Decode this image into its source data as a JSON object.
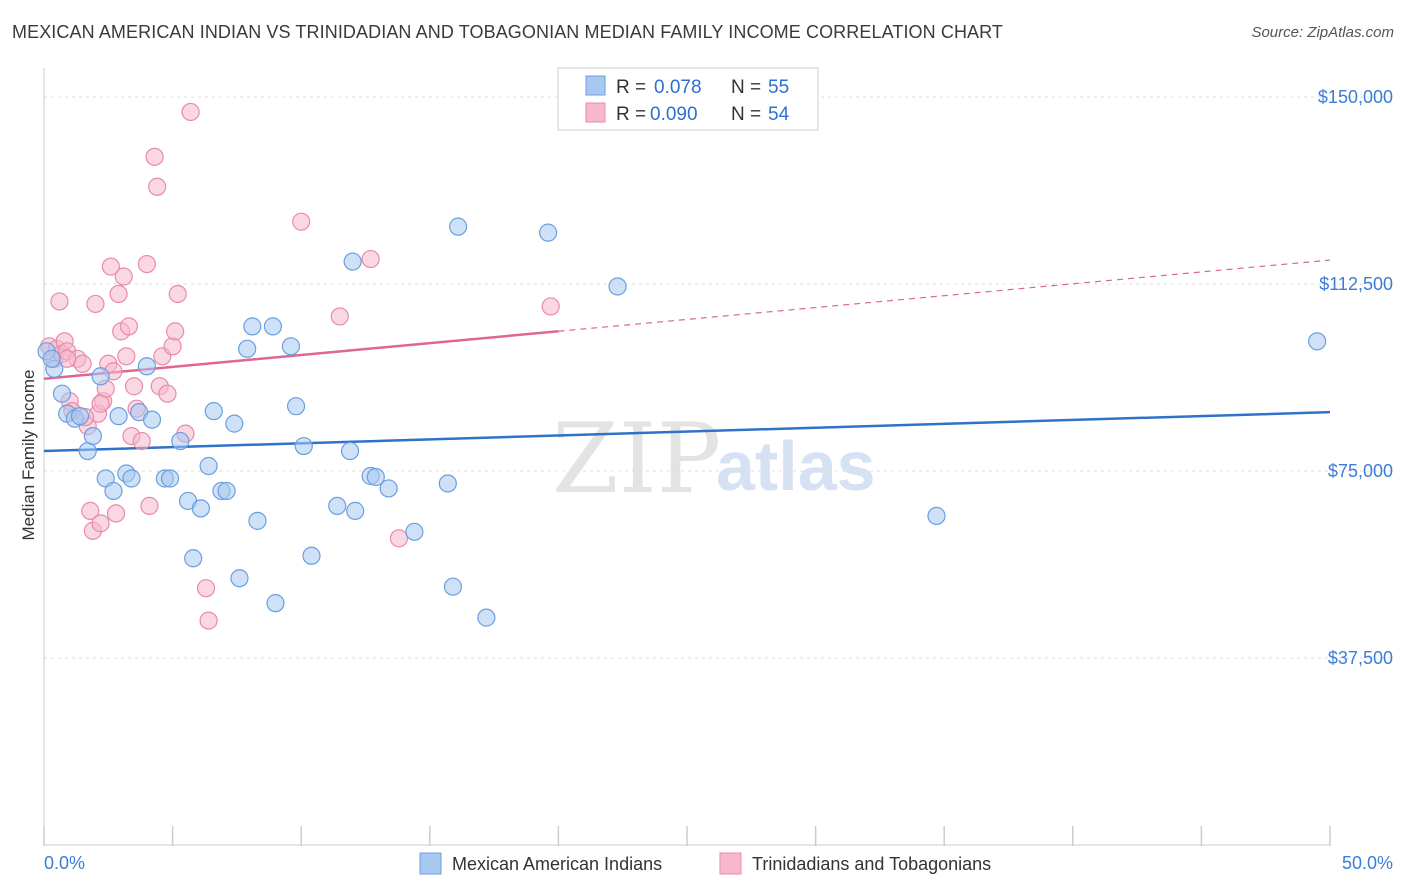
{
  "header": {
    "title": "MEXICAN AMERICAN INDIAN VS TRINIDADIAN AND TOBAGONIAN MEDIAN FAMILY INCOME CORRELATION CHART",
    "source": "Source: ZipAtlas.com"
  },
  "watermark": {
    "zip": "ZIP",
    "atlas": "atlas"
  },
  "legend": {
    "r_label": "R =",
    "n_label": "N =",
    "entries": [
      {
        "r": "0.078",
        "n": "55"
      },
      {
        "r": "0.090",
        "n": "54"
      }
    ]
  },
  "colors": {
    "blue_fill": "#a8c8f0",
    "blue_stroke": "#6a9fe0",
    "blue_line": "#2f72c9",
    "pink_fill": "#f6b8cc",
    "pink_stroke": "#e98aab",
    "pink_line": "#e0668f",
    "axis_text": "#3b7dd8",
    "grid": "#dddddd"
  },
  "chart_data": {
    "type": "scatter",
    "title": "MEXICAN AMERICAN INDIAN VS TRINIDADIAN AND TOBAGONIAN MEDIAN FAMILY INCOME CORRELATION CHART",
    "xlabel": "",
    "ylabel": "Median Family Income",
    "xlim": [
      0,
      50
    ],
    "ylim": [
      0,
      155000
    ],
    "x_tick_labels": [
      "0.0%",
      "50.0%"
    ],
    "y_ticks": [
      37500,
      75000,
      112500,
      150000
    ],
    "y_tick_labels": [
      "$37,500",
      "$75,000",
      "$112,500",
      "$150,000"
    ],
    "grid": "horizontal dashed",
    "legend_position": "top-center",
    "series": [
      {
        "name": "Mexican American Indians",
        "r": 0.078,
        "n": 55,
        "trend": {
          "x": [
            0,
            50
          ],
          "y": [
            79000,
            86800
          ],
          "dashed_from": null
        },
        "points": [
          [
            0.1,
            99000
          ],
          [
            0.4,
            95500
          ],
          [
            0.7,
            90500
          ],
          [
            0.9,
            86500
          ],
          [
            1.2,
            85500
          ],
          [
            1.4,
            86000
          ],
          [
            1.7,
            79000
          ],
          [
            1.9,
            82000
          ],
          [
            2.2,
            94000
          ],
          [
            2.4,
            73500
          ],
          [
            2.7,
            71000
          ],
          [
            2.9,
            86000
          ],
          [
            3.2,
            74500
          ],
          [
            3.4,
            73500
          ],
          [
            3.7,
            86800
          ],
          [
            4.0,
            96000
          ],
          [
            4.2,
            85300
          ],
          [
            4.7,
            73500
          ],
          [
            4.9,
            73500
          ],
          [
            5.3,
            81000
          ],
          [
            5.6,
            69000
          ],
          [
            5.8,
            57500
          ],
          [
            6.1,
            67500
          ],
          [
            6.4,
            76000
          ],
          [
            6.6,
            87000
          ],
          [
            6.9,
            71000
          ],
          [
            7.1,
            71000
          ],
          [
            7.4,
            84500
          ],
          [
            7.6,
            53500
          ],
          [
            7.9,
            99500
          ],
          [
            8.1,
            104000
          ],
          [
            8.3,
            65000
          ],
          [
            8.9,
            104000
          ],
          [
            9.0,
            48500
          ],
          [
            9.6,
            100000
          ],
          [
            9.8,
            88000
          ],
          [
            10.1,
            80000
          ],
          [
            10.4,
            58000
          ],
          [
            11.4,
            68000
          ],
          [
            11.9,
            79000
          ],
          [
            12.0,
            117000
          ],
          [
            12.1,
            67000
          ],
          [
            12.7,
            74000
          ],
          [
            12.9,
            73800
          ],
          [
            13.4,
            71500
          ],
          [
            14.4,
            62800
          ],
          [
            15.7,
            72500
          ],
          [
            15.9,
            51800
          ],
          [
            16.1,
            124000
          ],
          [
            17.2,
            45600
          ],
          [
            19.6,
            122800
          ],
          [
            22.3,
            112000
          ],
          [
            34.7,
            66000
          ],
          [
            49.5,
            101000
          ],
          [
            0.3,
            97500
          ]
        ]
      },
      {
        "name": "Trinidadians and Tobagonians",
        "r": 0.09,
        "n": 54,
        "trend": {
          "x": [
            0,
            50
          ],
          "y": [
            93500,
            117300
          ],
          "dashed_from": 20
        },
        "points": [
          [
            0.2,
            100000
          ],
          [
            0.4,
            97500
          ],
          [
            0.5,
            99500
          ],
          [
            0.7,
            98500
          ],
          [
            0.8,
            101000
          ],
          [
            0.9,
            99000
          ],
          [
            0.6,
            109000
          ],
          [
            1.0,
            89000
          ],
          [
            1.1,
            87000
          ],
          [
            1.3,
            97500
          ],
          [
            1.5,
            96500
          ],
          [
            1.7,
            84000
          ],
          [
            1.8,
            67000
          ],
          [
            1.9,
            63000
          ],
          [
            2.0,
            108500
          ],
          [
            2.1,
            86500
          ],
          [
            2.2,
            64500
          ],
          [
            2.3,
            89000
          ],
          [
            2.4,
            91500
          ],
          [
            2.5,
            96500
          ],
          [
            2.6,
            116000
          ],
          [
            2.7,
            95000
          ],
          [
            2.8,
            66500
          ],
          [
            2.9,
            110500
          ],
          [
            3.0,
            103000
          ],
          [
            3.1,
            114000
          ],
          [
            3.2,
            98000
          ],
          [
            3.3,
            104000
          ],
          [
            3.4,
            82000
          ],
          [
            3.5,
            92000
          ],
          [
            3.8,
            81000
          ],
          [
            4.0,
            116500
          ],
          [
            4.1,
            68000
          ],
          [
            4.3,
            138000
          ],
          [
            4.4,
            132000
          ],
          [
            4.5,
            92000
          ],
          [
            4.6,
            98000
          ],
          [
            4.8,
            90500
          ],
          [
            5.0,
            100000
          ],
          [
            5.1,
            103000
          ],
          [
            5.2,
            110500
          ],
          [
            5.5,
            82500
          ],
          [
            5.7,
            147000
          ],
          [
            6.3,
            51500
          ],
          [
            6.4,
            45000
          ],
          [
            10.0,
            125000
          ],
          [
            11.5,
            106000
          ],
          [
            12.7,
            117500
          ],
          [
            13.8,
            61500
          ],
          [
            19.7,
            108000
          ],
          [
            3.6,
            87500
          ],
          [
            2.2,
            88500
          ],
          [
            1.6,
            85800
          ],
          [
            0.9,
            97500
          ]
        ]
      }
    ]
  },
  "bottom_legend": [
    {
      "label": "Mexican American Indians"
    },
    {
      "label": "Trinidadians and Tobagonians"
    }
  ]
}
